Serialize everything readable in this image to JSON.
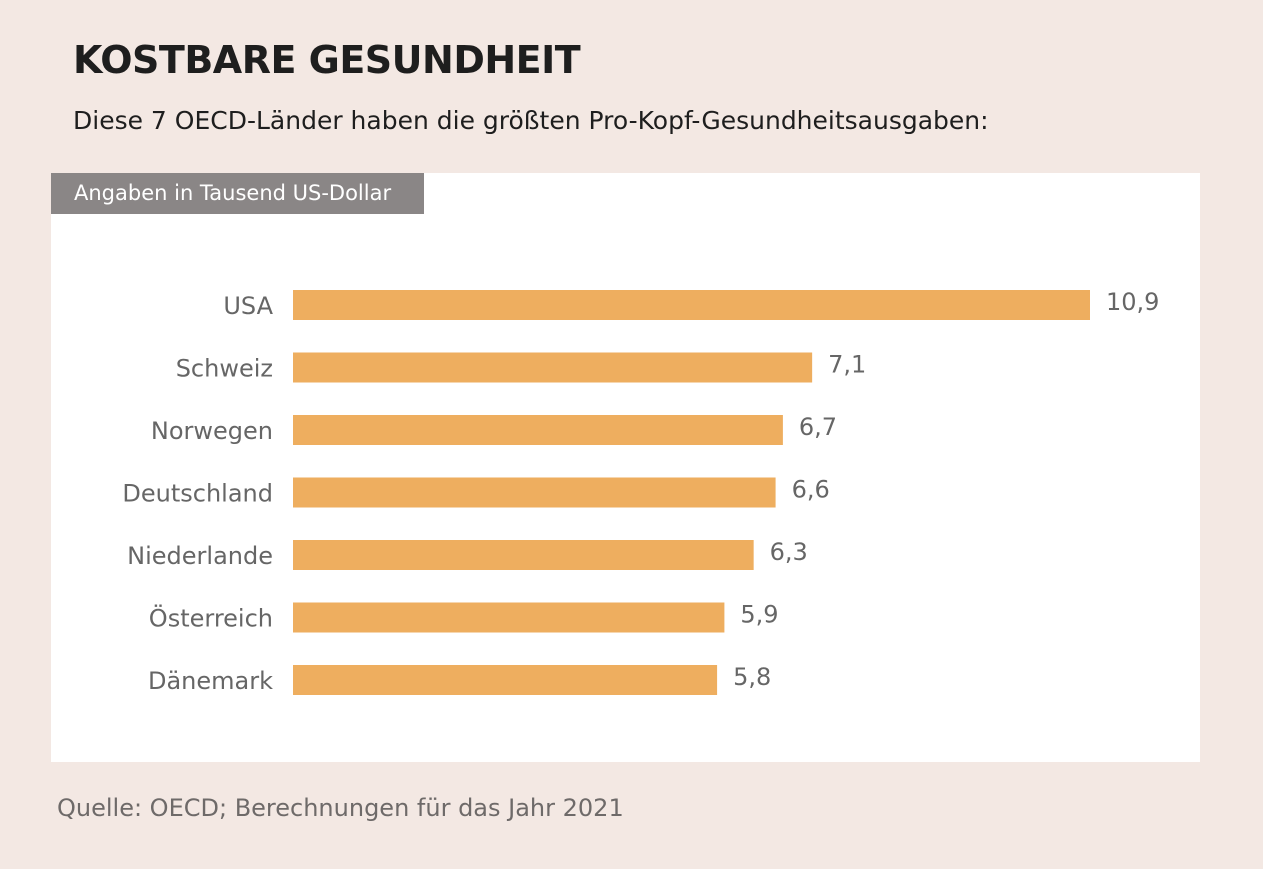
{
  "header": {
    "title": "KOSTBARE GESUNDHEIT",
    "subtitle": "Diese 7 OECD-Länder haben die größten Pro-Kopf-Gesundheitsausgaben:"
  },
  "unit_label": "Angaben in Tausend US-Dollar",
  "source": "Quelle: OECD; Berechnungen für das Jahr 2021",
  "colors": {
    "background": "#f3e8e3",
    "panel": "#ffffff",
    "bar": "#eeae5f",
    "unit_label_bg": "#8a8686",
    "label_text": "#666666"
  },
  "chart_data": {
    "type": "bar",
    "orientation": "horizontal",
    "categories": [
      "USA",
      "Schweiz",
      "Norwegen",
      "Deutschland",
      "Niederlande",
      "Österreich",
      "Dänemark"
    ],
    "values": [
      10.9,
      7.1,
      6.7,
      6.6,
      6.3,
      5.9,
      5.8
    ],
    "value_labels": [
      "10,9",
      "7,1",
      "6,7",
      "6,6",
      "6,3",
      "5,9",
      "5,8"
    ],
    "title": "KOSTBARE GESUNDHEIT",
    "xlabel": "",
    "ylabel": "",
    "xlim": [
      0,
      10.9
    ],
    "grid": false,
    "legend": "none"
  }
}
